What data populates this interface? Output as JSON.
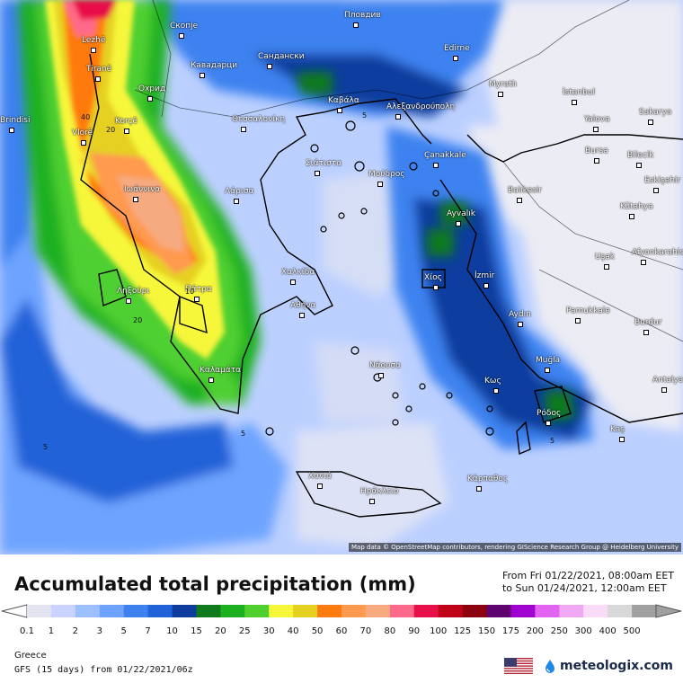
{
  "attribution": "Map data © OpenStreetMap contributors, rendering GIScience Research Group @ Heidelberg University",
  "title": "Accumulated total precipitation (mm)",
  "period": {
    "from": "From Fri 01/22/2021, 08:00am EET",
    "to": "to Sun 01/24/2021, 12:00am EET"
  },
  "legend": {
    "ticks": [
      "0.1",
      "1",
      "2",
      "3",
      "5",
      "7",
      "10",
      "15",
      "20",
      "25",
      "30",
      "40",
      "50",
      "60",
      "70",
      "80",
      "90",
      "100",
      "125",
      "150",
      "175",
      "200",
      "250",
      "300",
      "400",
      "500"
    ],
    "colors": [
      "#e4e4f0",
      "#c8d4ff",
      "#9cc0ff",
      "#6ea4ff",
      "#3e82f0",
      "#2262d8",
      "#0e3c9e",
      "#107a1c",
      "#1cb020",
      "#50d030",
      "#f6f63a",
      "#e6d020",
      "#ff7a10",
      "#ff9a50",
      "#f6aa80",
      "#ff6a8a",
      "#e8104a",
      "#c00018",
      "#8c0010",
      "#600070",
      "#a000d0",
      "#e064f0",
      "#f0a8f4",
      "#fadcfa",
      "#d8d8d8",
      "#a0a0a0"
    ]
  },
  "cities": [
    {
      "name": "Пловдив"
    },
    {
      "name": "Скопје"
    },
    {
      "name": "Lezhë"
    },
    {
      "name": "Edirne"
    },
    {
      "name": "Сандански"
    },
    {
      "name": "Кавадарци"
    },
    {
      "name": "Tiranë"
    },
    {
      "name": "Муratlı"
    },
    {
      "name": "İstanbul"
    },
    {
      "name": "Охрид"
    },
    {
      "name": "Καβάλα"
    },
    {
      "name": "Αλεξανδρούπολη"
    },
    {
      "name": "Sakarya"
    },
    {
      "name": "Yalova"
    },
    {
      "name": "Korçë"
    },
    {
      "name": "Θεσσαλονίκη"
    },
    {
      "name": "Çanakkale"
    },
    {
      "name": "Bursa"
    },
    {
      "name": "Bilecik"
    },
    {
      "name": "Vlorë"
    },
    {
      "name": "Σιάτιστα"
    },
    {
      "name": "Μούδρος"
    },
    {
      "name": "Balıkesir"
    },
    {
      "name": "Eskişehir"
    },
    {
      "name": "Ιωάννινα"
    },
    {
      "name": "Λάρισα"
    },
    {
      "name": "Ayvalık"
    },
    {
      "name": "Kütahya"
    },
    {
      "name": "Uşak"
    },
    {
      "name": "Afyonkarahisar"
    },
    {
      "name": "Χαλκίδα"
    },
    {
      "name": "İzmir"
    },
    {
      "name": "Χίος"
    },
    {
      "name": "Πάτρα"
    },
    {
      "name": "Ληξούρι"
    },
    {
      "name": "Αθήνα"
    },
    {
      "name": "Aydın"
    },
    {
      "name": "Pamukkale"
    },
    {
      "name": "Burdur"
    },
    {
      "name": "Νάουσα"
    },
    {
      "name": "Muğla"
    },
    {
      "name": "Καλαμάτα"
    },
    {
      "name": "Κως"
    },
    {
      "name": "Antalya"
    },
    {
      "name": "Ρόδος"
    },
    {
      "name": "Kaş"
    },
    {
      "name": "Χανιά"
    },
    {
      "name": "Κάρπαθος"
    },
    {
      "name": "Ηράκλειο"
    },
    {
      "name": "Brindisi"
    }
  ],
  "contour_labels": [
    {
      "text": "40"
    },
    {
      "text": "20"
    },
    {
      "text": "20"
    },
    {
      "text": "5"
    },
    {
      "text": "5"
    },
    {
      "text": "5"
    },
    {
      "text": "5"
    },
    {
      "text": "10"
    }
  ],
  "footer": {
    "region": "Greece",
    "model": "GFS (15 days) from  01/22/2021/06z"
  },
  "brand": {
    "logo_text": "meteologix.com",
    "logo_icon": "meteologix-drop-icon",
    "flag_icon": "us-flag-icon"
  }
}
